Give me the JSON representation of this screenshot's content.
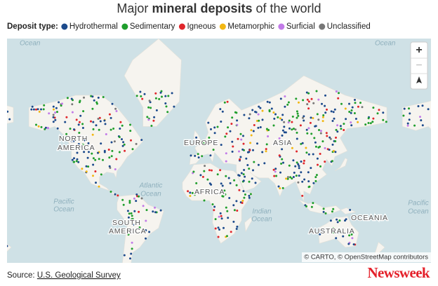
{
  "header": {
    "title_start": "Major",
    "title_bold": "mineral deposits",
    "title_end": "of the world"
  },
  "legend": {
    "label": "Deposit type:",
    "items": [
      {
        "name": "Hydrothermal",
        "color": "#1c4a8c"
      },
      {
        "name": "Sedimentary",
        "color": "#1f9e2c"
      },
      {
        "name": "Igneous",
        "color": "#e0262b"
      },
      {
        "name": "Metamorphic",
        "color": "#f2b713"
      },
      {
        "name": "Surficial",
        "color": "#c27be8"
      },
      {
        "name": "Unclassified",
        "color": "#777777"
      }
    ]
  },
  "map": {
    "ocean_left": "Ocean",
    "ocean_right": "Ocean",
    "north_america": [
      "NORTH",
      "AMERICA"
    ],
    "south_america": [
      "SOUTH",
      "AMERICA"
    ],
    "europe": "EUROPE",
    "asia": "ASIA",
    "africa": "AFRICA",
    "oceania": "OCEANIA",
    "australia": "AUSTRALIA",
    "atlantic": [
      "Atlantic",
      "Ocean"
    ],
    "pacific_left": [
      "Pacific",
      "Ocean"
    ],
    "pacific_right": [
      "Pacific",
      "Ocean"
    ],
    "indian": [
      "Indian",
      "Ocean"
    ],
    "zoom_in": "+",
    "zoom_out": "−",
    "attribution": "© CARTO, © OpenStreetMap contributors"
  },
  "footer": {
    "source_label": "Source:",
    "source_link": "U.S. Geological Survey",
    "brand": "Newsweek"
  }
}
